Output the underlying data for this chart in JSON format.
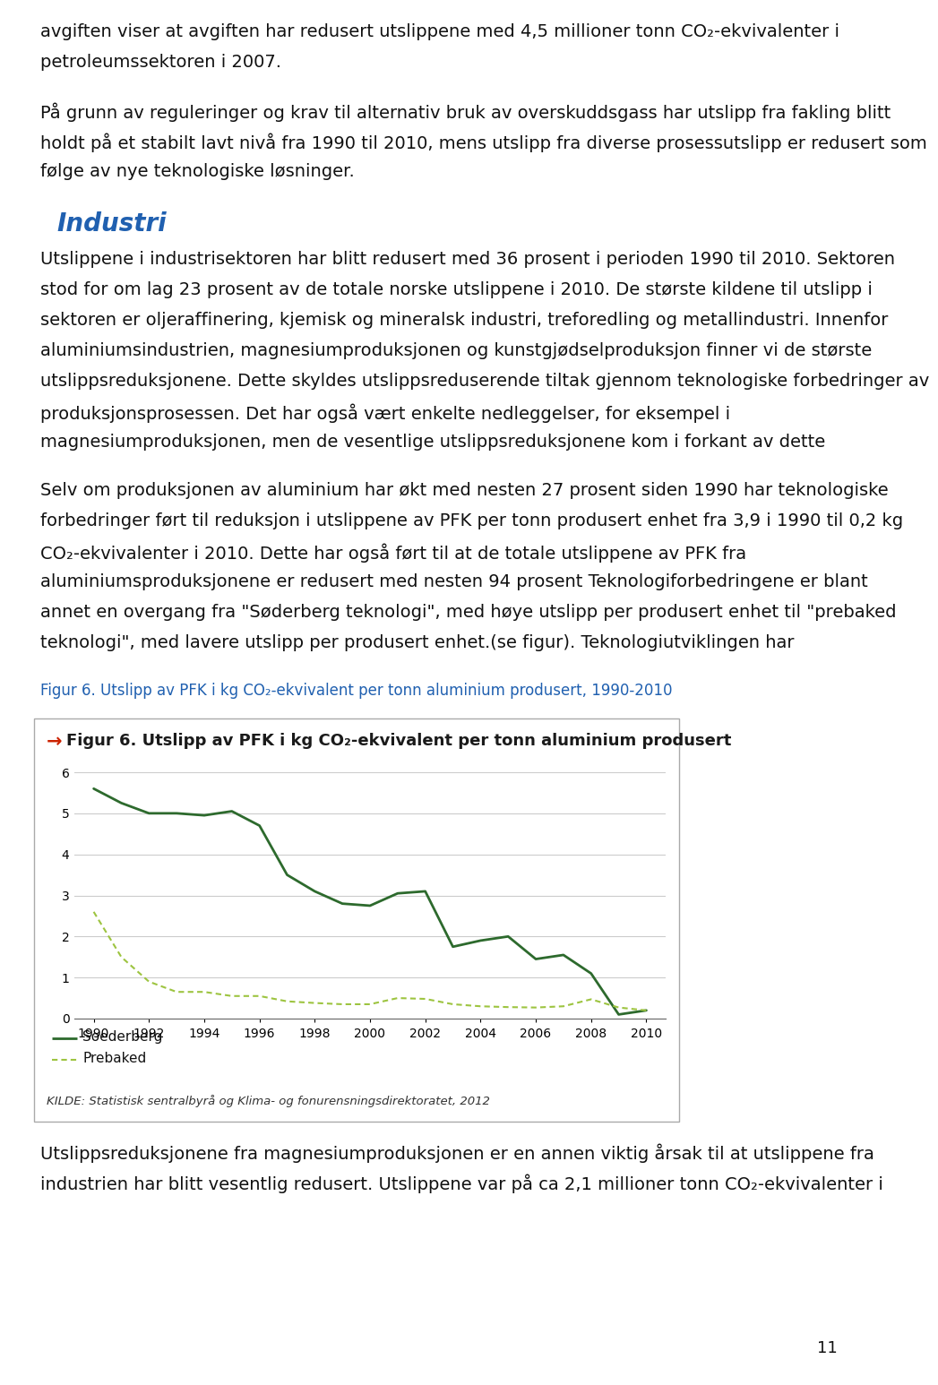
{
  "years": [
    1990,
    1991,
    1992,
    1993,
    1994,
    1995,
    1996,
    1997,
    1998,
    1999,
    2000,
    2001,
    2002,
    2003,
    2004,
    2005,
    2006,
    2007,
    2008,
    2009,
    2010
  ],
  "soederberg": [
    5.6,
    5.25,
    5.0,
    5.0,
    4.95,
    5.05,
    4.7,
    3.5,
    3.1,
    2.8,
    2.75,
    3.05,
    3.1,
    1.75,
    1.9,
    2.0,
    1.45,
    1.55,
    1.1,
    0.1,
    0.2
  ],
  "prebaked": [
    2.6,
    1.5,
    0.9,
    0.65,
    0.65,
    0.55,
    0.55,
    0.42,
    0.38,
    0.35,
    0.35,
    0.5,
    0.48,
    0.35,
    0.3,
    0.28,
    0.27,
    0.3,
    0.47,
    0.27,
    0.2
  ],
  "soederberg_color": "#2d6a2d",
  "prebaked_color": "#9dc440",
  "ylim": [
    0,
    6
  ],
  "yticks": [
    0,
    1,
    2,
    3,
    4,
    5,
    6
  ],
  "xticks": [
    1990,
    1992,
    1994,
    1996,
    1998,
    2000,
    2002,
    2004,
    2006,
    2008,
    2010
  ],
  "section_color": "#2060b0",
  "fig_caption_color": "#2060b0",
  "chart_arrow_color": "#cc2200",
  "body_text_color": "#111111",
  "background_color": "#ffffff",
  "chart_bg_color": "#ffffff",
  "chart_border_color": "#aaaaaa",
  "grid_color": "#cccccc",
  "source_text": "KILDE: Statistisk sentralbyrå og Klima- og fonurensningsdirektoratet, 2012",
  "fig_caption": "Figur 6. Utslipp av PFK i kg CO₂-ekvivalent per tonn aluminium produsert, 1990-2010",
  "chart_title": "Figur 6. Utslipp av PFK i kg CO₂-ekvivalent per tonn aluminium produsert",
  "page_number": "11",
  "line1": "avgiften viser at avgiften har redusert utslippene med 4,5 millioner tonn CO₂-ekvivalenter i",
  "line2": "petroleumssektoren i 2007.",
  "para1_lines": [
    "På grunn av reguleringer og krav til alternativ bruk av overskuddsgass har utslipp fra fakling blitt",
    "holdt på et stabilt lavt nivå fra 1990 til 2010, mens utslipp fra diverse prosessutslipp er redusert som",
    "følge av nye teknologiske løsninger."
  ],
  "section_header": "Industri",
  "para2_lines": [
    "Utslippene i industrisektoren har blitt redusert med 36 prosent i perioden 1990 til 2010. Sektoren",
    "stod for om lag 23 prosent av de totale norske utslippene i 2010. De største kildene til utslipp i",
    "sektoren er oljeraffinering, kjemisk og mineralsk industri, treforedling og metallindustri. Innenfor",
    "aluminiumsindustrien, magnesiumproduksjonen og kunstgjødselproduksjon finner vi de største",
    "utslippsreduksjonene. Dette skyldes utslippsreduserende tiltak gjennom teknologiske forbedringer av",
    "produksjonsprosessen. Det har også vært enkelte nedleggelser, for eksempel i",
    "magnesiumproduksjonen, men de vesentlige utslippsreduksjonene kom i forkant av dette"
  ],
  "para3_lines": [
    "Selv om produksjonen av aluminium har økt med nesten 27 prosent siden 1990 har teknologiske",
    "forbedringer ført til reduksjon i utslippene av PFK per tonn produsert enhet fra 3,9 i 1990 til 0,2 kg",
    "CO₂-ekvivalenter i 2010. Dette har også ført til at de totale utslippene av PFK fra",
    "aluminiumsproduksjonene er redusert med nesten 94 prosent Teknologiforbedringene er blant",
    "annet en overgang fra \"Søderberg teknologi\", med høye utslipp per produsert enhet til \"prebaked",
    "teknologi\", med lavere utslipp per produsert enhet.(se figur). Teknologiutviklingen har"
  ],
  "para4_lines": [
    "Utslippsreduksjonene fra magnesiumproduksjonen er en annen viktig årsak til at utslippene fra",
    "industrien har blitt vesentlig redusert. Utslippene var på ca 2,1 millioner tonn CO₂-ekvivalenter i"
  ]
}
